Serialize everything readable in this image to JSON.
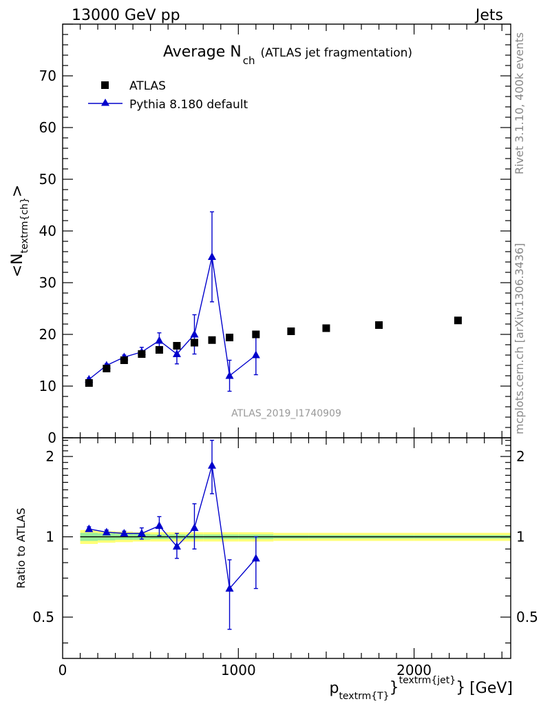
{
  "header": {
    "left": "13000 GeV pp",
    "right": "Jets"
  },
  "side_labels": {
    "rivet": "Rivet 3.1.10,  400k events",
    "mcplots": "mcplots.cern.ch [arXiv:1306.3436]"
  },
  "chart_data": [
    {
      "type": "scatter",
      "title_main": "Average N",
      "title_sub": "ch",
      "title_tail": "(ATLAS jet fragmentation)",
      "ylabel_main": "<N",
      "ylabel_sub": "textrm{ch}",
      "ylabel_tail": ">",
      "watermark": "ATLAS_2019_I1740909",
      "xlim": [
        0,
        2550
      ],
      "ylim": [
        0,
        80
      ],
      "y_ticks": [
        0,
        10,
        20,
        30,
        40,
        50,
        60,
        70
      ],
      "y_tick_labels": [
        "0",
        "10",
        "20",
        "30",
        "40",
        "50",
        "60",
        "70"
      ],
      "legend_position": "top-left",
      "series": [
        {
          "name": "ATLAS",
          "marker": "square",
          "color": "#000000",
          "x": [
            150,
            250,
            350,
            450,
            550,
            650,
            750,
            850,
            950,
            1100,
            1300,
            1500,
            1800,
            2250
          ],
          "y": [
            10.6,
            13.4,
            15.0,
            16.2,
            17.0,
            17.8,
            18.4,
            18.9,
            19.4,
            20.0,
            20.6,
            21.2,
            21.8,
            22.7
          ]
        },
        {
          "name": "Pythia 8.180 default",
          "marker": "triangle",
          "color": "#0000cc",
          "x": [
            150,
            250,
            350,
            450,
            550,
            650,
            750,
            850,
            950,
            1100
          ],
          "y": [
            11.3,
            14.0,
            15.6,
            16.6,
            18.8,
            16.2,
            20.0,
            35.0,
            12.0,
            16.0
          ],
          "err": [
            0.3,
            0.3,
            0.4,
            0.9,
            1.5,
            1.9,
            3.8,
            8.7,
            3.0,
            3.8
          ]
        }
      ]
    },
    {
      "type": "scatter",
      "ylabel": "Ratio to ATLAS",
      "xlabel_main": "p",
      "xlabel_sub": "textrm{T}",
      "xlabel_sup": "textrm{jet}",
      "xlabel_brace": "}",
      "xlabel_sup_brace": "}",
      "xlabel_unit": "[GeV]",
      "xlim": [
        0,
        2550
      ],
      "ylim": [
        0.35,
        2.35
      ],
      "x_ticks": [
        0,
        1000,
        2000
      ],
      "x_tick_labels": [
        "0",
        "1000",
        "2000"
      ],
      "y_ticks": [
        0.5,
        1,
        2
      ],
      "y_tick_labels": [
        "0.5",
        "1",
        "2"
      ],
      "reference_line": 1,
      "band_outer_color": "#ffff77",
      "band_inner_color": "#99ee99",
      "band": {
        "x_edges": [
          100,
          200,
          300,
          400,
          500,
          600,
          700,
          800,
          900,
          1000,
          1200,
          1400,
          1600,
          2000,
          2550
        ],
        "outer": [
          0.06,
          0.05,
          0.045,
          0.04,
          0.04,
          0.04,
          0.04,
          0.04,
          0.04,
          0.04,
          0.035,
          0.035,
          0.035,
          0.035
        ],
        "inner": [
          0.035,
          0.03,
          0.025,
          0.025,
          0.02,
          0.02,
          0.02,
          0.02,
          0.02,
          0.02,
          0.015,
          0.015,
          0.015,
          0.015
        ]
      },
      "series": [
        {
          "name": "Pythia 8.180 default",
          "color": "#0000cc",
          "x": [
            150,
            250,
            350,
            450,
            550,
            650,
            750,
            850,
            950,
            1100
          ],
          "y": [
            1.07,
            1.04,
            1.03,
            1.03,
            1.1,
            0.92,
            1.08,
            1.85,
            0.64,
            0.83
          ],
          "err_low": [
            0.02,
            0.02,
            0.02,
            0.05,
            0.09,
            0.09,
            0.18,
            0.4,
            0.19,
            0.19
          ],
          "err_high": [
            0.02,
            0.02,
            0.02,
            0.05,
            0.09,
            0.11,
            0.25,
            0.45,
            0.18,
            0.17
          ]
        }
      ]
    }
  ]
}
